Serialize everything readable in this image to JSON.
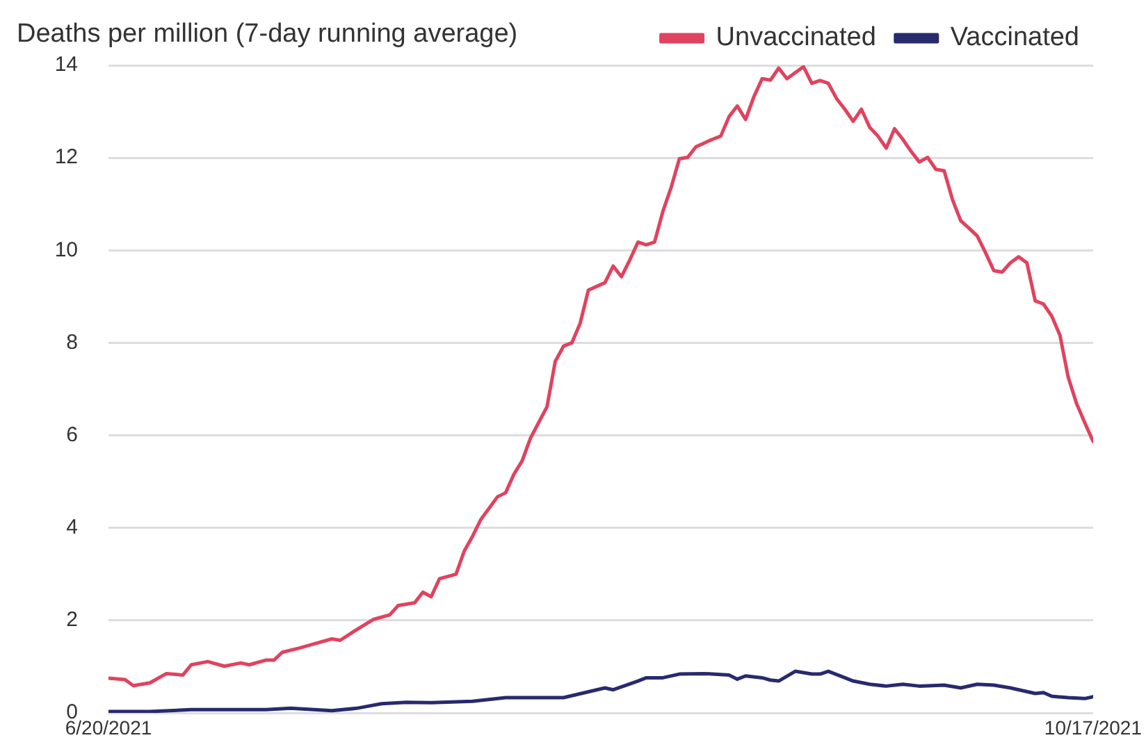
{
  "chart_data": {
    "type": "line",
    "title": "Deaths per million (7-day running average)",
    "legend": "top right",
    "grid": "y",
    "marker": "none",
    "line_style": "solid",
    "xlim": [
      "2021-06-20",
      "2021-10-17"
    ],
    "xticks": [
      {
        "value": "2021-06-20",
        "label": "6/20/2021"
      },
      {
        "value": "2021-10-17",
        "label": "10/17/2021"
      }
    ],
    "ylim": [
      0,
      14
    ],
    "yticks": [
      0,
      2,
      4,
      6,
      8,
      10,
      12,
      14
    ],
    "series": [
      {
        "name": "Unvaccinated",
        "color": "#e0435f",
        "x": [
          "2021-06-20",
          "2021-06-22",
          "2021-06-23",
          "2021-06-25",
          "2021-06-27",
          "2021-06-29",
          "2021-06-30",
          "2021-07-02",
          "2021-07-04",
          "2021-07-06",
          "2021-07-07",
          "2021-07-09",
          "2021-07-10",
          "2021-07-11",
          "2021-07-13",
          "2021-07-15",
          "2021-07-17",
          "2021-07-18",
          "2021-07-20",
          "2021-07-22",
          "2021-07-24",
          "2021-07-25",
          "2021-07-27",
          "2021-07-28",
          "2021-07-29",
          "2021-07-30",
          "2021-08-01",
          "2021-08-02",
          "2021-08-03",
          "2021-08-04",
          "2021-08-06",
          "2021-08-07",
          "2021-08-08",
          "2021-08-09",
          "2021-08-10",
          "2021-08-12",
          "2021-08-13",
          "2021-08-14",
          "2021-08-15",
          "2021-08-16",
          "2021-08-17",
          "2021-08-19",
          "2021-08-20",
          "2021-08-21",
          "2021-08-22",
          "2021-08-23",
          "2021-08-24",
          "2021-08-25",
          "2021-08-26",
          "2021-08-27",
          "2021-08-28",
          "2021-08-29",
          "2021-08-30",
          "2021-09-01",
          "2021-09-02",
          "2021-09-03",
          "2021-09-04",
          "2021-09-05",
          "2021-09-06",
          "2021-09-07",
          "2021-09-08",
          "2021-09-09",
          "2021-09-10",
          "2021-09-12",
          "2021-09-13",
          "2021-09-14",
          "2021-09-15",
          "2021-09-16",
          "2021-09-17",
          "2021-09-18",
          "2021-09-19",
          "2021-09-20",
          "2021-09-21",
          "2021-09-22",
          "2021-09-23",
          "2021-09-24",
          "2021-09-25",
          "2021-09-26",
          "2021-09-27",
          "2021-09-28",
          "2021-09-29",
          "2021-09-30",
          "2021-10-01",
          "2021-10-02",
          "2021-10-03",
          "2021-10-04",
          "2021-10-05",
          "2021-10-06",
          "2021-10-07",
          "2021-10-08",
          "2021-10-09",
          "2021-10-10",
          "2021-10-11",
          "2021-10-12",
          "2021-10-13",
          "2021-10-14",
          "2021-10-15",
          "2021-10-16",
          "2021-10-17"
        ],
        "values": [
          0.75,
          0.72,
          0.59,
          0.65,
          0.85,
          0.82,
          1.04,
          1.11,
          1.01,
          1.08,
          1.04,
          1.14,
          1.14,
          1.31,
          1.4,
          1.5,
          1.6,
          1.57,
          1.8,
          2.02,
          2.12,
          2.32,
          2.38,
          2.61,
          2.51,
          2.9,
          3.0,
          3.5,
          3.82,
          4.18,
          4.67,
          4.76,
          5.16,
          5.45,
          5.94,
          6.62,
          7.6,
          7.93,
          8.0,
          8.42,
          9.14,
          9.3,
          9.66,
          9.43,
          9.79,
          10.18,
          10.12,
          10.18,
          10.84,
          11.36,
          11.98,
          12.01,
          12.24,
          12.4,
          12.47,
          12.89,
          13.12,
          12.83,
          13.32,
          13.71,
          13.68,
          13.94,
          13.71,
          13.97,
          13.61,
          13.67,
          13.61,
          13.28,
          13.05,
          12.79,
          13.05,
          12.66,
          12.47,
          12.21,
          12.63,
          12.4,
          12.14,
          11.91,
          12.01,
          11.75,
          11.72,
          11.1,
          10.64,
          10.48,
          10.31,
          9.95,
          9.56,
          9.53,
          9.73,
          9.86,
          9.73,
          8.91,
          8.84,
          8.58,
          8.16,
          7.25,
          6.69,
          6.27,
          5.87
        ]
      },
      {
        "name": "Vaccinated",
        "color": "#282a6e",
        "x": [
          "2021-06-20",
          "2021-06-25",
          "2021-06-30",
          "2021-07-09",
          "2021-07-12",
          "2021-07-17",
          "2021-07-20",
          "2021-07-23",
          "2021-07-26",
          "2021-07-29",
          "2021-08-03",
          "2021-08-07",
          "2021-08-11",
          "2021-08-14",
          "2021-08-19",
          "2021-08-20",
          "2021-08-23",
          "2021-08-24",
          "2021-08-26",
          "2021-08-28",
          "2021-08-31",
          "2021-09-03",
          "2021-09-04",
          "2021-09-05",
          "2021-09-07",
          "2021-09-08",
          "2021-09-09",
          "2021-09-11",
          "2021-09-13",
          "2021-09-14",
          "2021-09-15",
          "2021-09-17",
          "2021-09-18",
          "2021-09-20",
          "2021-09-22",
          "2021-09-24",
          "2021-09-26",
          "2021-09-29",
          "2021-10-01",
          "2021-10-03",
          "2021-10-05",
          "2021-10-07",
          "2021-10-10",
          "2021-10-11",
          "2021-10-12",
          "2021-10-14",
          "2021-10-16",
          "2021-10-17"
        ],
        "values": [
          0.03,
          0.03,
          0.07,
          0.07,
          0.1,
          0.05,
          0.1,
          0.2,
          0.23,
          0.22,
          0.25,
          0.33,
          0.33,
          0.33,
          0.54,
          0.5,
          0.69,
          0.76,
          0.76,
          0.84,
          0.85,
          0.82,
          0.73,
          0.8,
          0.76,
          0.71,
          0.69,
          0.9,
          0.84,
          0.84,
          0.9,
          0.76,
          0.69,
          0.62,
          0.58,
          0.62,
          0.58,
          0.6,
          0.54,
          0.62,
          0.6,
          0.54,
          0.42,
          0.44,
          0.36,
          0.33,
          0.31,
          0.35
        ]
      }
    ]
  }
}
